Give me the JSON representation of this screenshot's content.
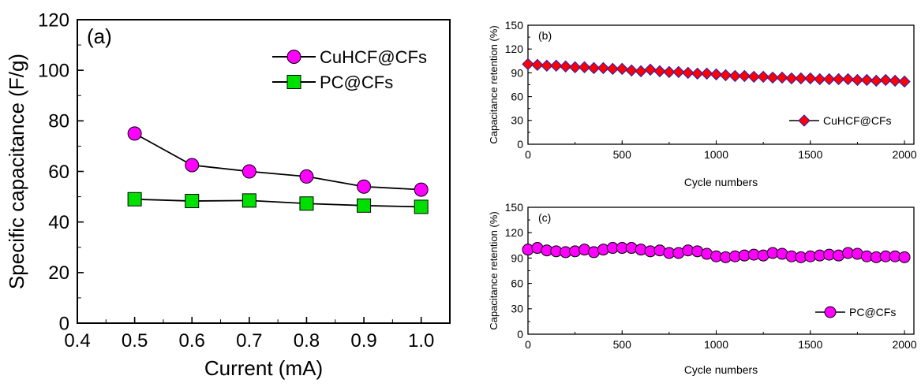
{
  "chart_data": [
    {
      "panel": "(a)",
      "type": "line",
      "xlabel": "Current (mA)",
      "ylabel": "Specific capacitance (F/g)",
      "xlim": [
        0.4,
        1.05
      ],
      "ylim": [
        0,
        120
      ],
      "xticks": [
        "0.4",
        "0.5",
        "0.6",
        "0.7",
        "0.8",
        "0.9",
        "1.0"
      ],
      "yticks": [
        "0",
        "20",
        "40",
        "60",
        "80",
        "100",
        "120"
      ],
      "x": [
        0.5,
        0.6,
        0.7,
        0.8,
        0.9,
        1.0
      ],
      "series": [
        {
          "name": "CuHCF@CFs",
          "marker": "circle",
          "color": "#ff00ff",
          "values": [
            75,
            62.5,
            60,
            58,
            54,
            52.8
          ]
        },
        {
          "name": "PC@CFs",
          "marker": "square",
          "color": "#00e000",
          "values": [
            49,
            48.3,
            48.5,
            47.3,
            46.5,
            46
          ]
        }
      ],
      "legend": "top-right"
    },
    {
      "panel": "(b)",
      "type": "line",
      "xlabel": "Cycle numbers",
      "ylabel": "Capacitance retention (%)",
      "xlim": [
        0,
        2050
      ],
      "ylim": [
        0,
        150
      ],
      "xticks": [
        "0",
        "500",
        "1000",
        "1500",
        "2000"
      ],
      "yticks": [
        "0",
        "30",
        "60",
        "90",
        "120",
        "150"
      ],
      "x": [
        0,
        50,
        100,
        150,
        200,
        250,
        300,
        350,
        400,
        450,
        500,
        550,
        600,
        650,
        700,
        750,
        800,
        850,
        900,
        950,
        1000,
        1050,
        1100,
        1150,
        1200,
        1250,
        1300,
        1350,
        1400,
        1450,
        1500,
        1550,
        1600,
        1650,
        1700,
        1750,
        1800,
        1850,
        1900,
        1950,
        2000
      ],
      "series": [
        {
          "name": "CuHCF@CFs",
          "marker": "diamond",
          "color": "#ff0000",
          "values": [
            101,
            100,
            99,
            99,
            98,
            97,
            97,
            96,
            96,
            95,
            95,
            93,
            92,
            94,
            92,
            91,
            91,
            90,
            89,
            89,
            88,
            87,
            86,
            86,
            85,
            85,
            84,
            84,
            83,
            83,
            83,
            82,
            82,
            82,
            82,
            81,
            81,
            80,
            81,
            80,
            79
          ]
        }
      ],
      "legend": "bottom-right"
    },
    {
      "panel": "(c)",
      "type": "line",
      "xlabel": "Cycle numbers",
      "ylabel": "Capacitance retention (%)",
      "xlim": [
        0,
        2050
      ],
      "ylim": [
        0,
        150
      ],
      "xticks": [
        "0",
        "500",
        "1000",
        "1500",
        "2000"
      ],
      "yticks": [
        "0",
        "30",
        "60",
        "90",
        "120",
        "150"
      ],
      "x": [
        0,
        50,
        100,
        150,
        200,
        250,
        300,
        350,
        400,
        450,
        500,
        550,
        600,
        650,
        700,
        750,
        800,
        850,
        900,
        950,
        1000,
        1050,
        1100,
        1150,
        1200,
        1250,
        1300,
        1350,
        1400,
        1450,
        1500,
        1550,
        1600,
        1650,
        1700,
        1750,
        1800,
        1850,
        1900,
        1950,
        2000
      ],
      "series": [
        {
          "name": "PC@CFs",
          "marker": "circle",
          "color": "#ff00ff",
          "values": [
            100,
            102,
            99,
            98,
            97,
            98,
            100,
            97,
            100,
            102,
            102,
            102,
            100,
            98,
            99,
            96,
            96,
            99,
            98,
            95,
            92,
            91,
            92,
            93,
            94,
            93,
            96,
            95,
            92,
            91,
            92,
            93,
            94,
            93,
            96,
            95,
            92,
            91,
            92,
            92,
            91
          ]
        }
      ],
      "legend": "bottom-right"
    }
  ]
}
